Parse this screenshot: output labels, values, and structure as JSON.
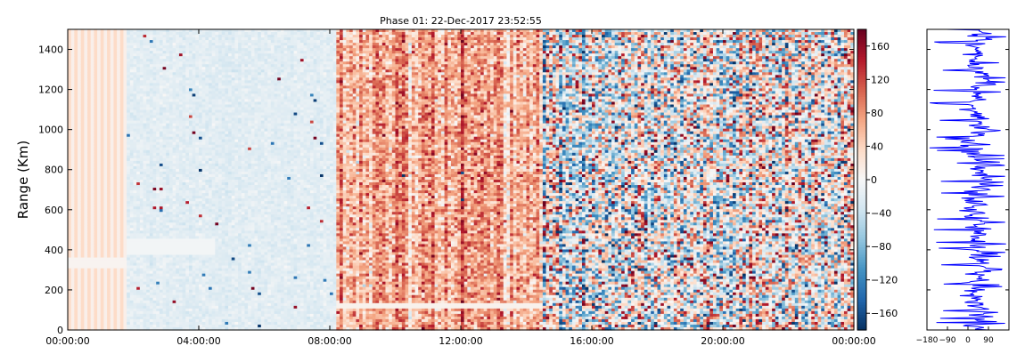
{
  "chart_data": [
    {
      "type": "heatmap",
      "title": "Phase 01: 22-Dec-2017 23:52:55",
      "xlabel": "",
      "ylabel": "Range (Km)",
      "xticks": [
        "00:00:00",
        "04:00:00",
        "08:00:00",
        "12:00:00",
        "16:00:00",
        "20:00:00",
        "00:00:00"
      ],
      "xlim": [
        "00:00:00",
        "00:00:00"
      ],
      "yticks": [
        0,
        200,
        400,
        600,
        800,
        1000,
        1200,
        1400
      ],
      "ylim": [
        0,
        1500
      ],
      "grid": false,
      "colormap": "RdBu_r",
      "colorbar": {
        "ticks": [
          160,
          120,
          80,
          40,
          0,
          -40,
          -80,
          -120,
          -160
        ],
        "range": [
          -180,
          180
        ]
      },
      "value_regions": [
        {
          "x_range": [
            "00:00:00",
            "01:50:00"
          ],
          "approx_value": 35,
          "pattern": "uniform vertical stripes"
        },
        {
          "x_range": [
            "01:50:00",
            "08:10:00"
          ],
          "approx_value": -20,
          "pattern": "light blue with scattered outliers"
        },
        {
          "x_range": [
            "08:10:00",
            "14:30:00"
          ],
          "approx_value": 70,
          "pattern": "noisy red"
        },
        {
          "x_range": [
            "14:30:00",
            "00:00:00"
          ],
          "approx_value": 0,
          "pattern": "strong random noise, full range"
        }
      ],
      "colors": {
        "red": "#67001f",
        "blue": "#053061",
        "neutral": "#f7f7f7"
      }
    },
    {
      "type": "line",
      "xticks": [
        "−180",
        "−90",
        "0",
        "90"
      ],
      "xlim": [
        -180,
        180
      ],
      "ylim": [
        0,
        1500
      ],
      "color": "#0000ff",
      "grid": false
    }
  ]
}
